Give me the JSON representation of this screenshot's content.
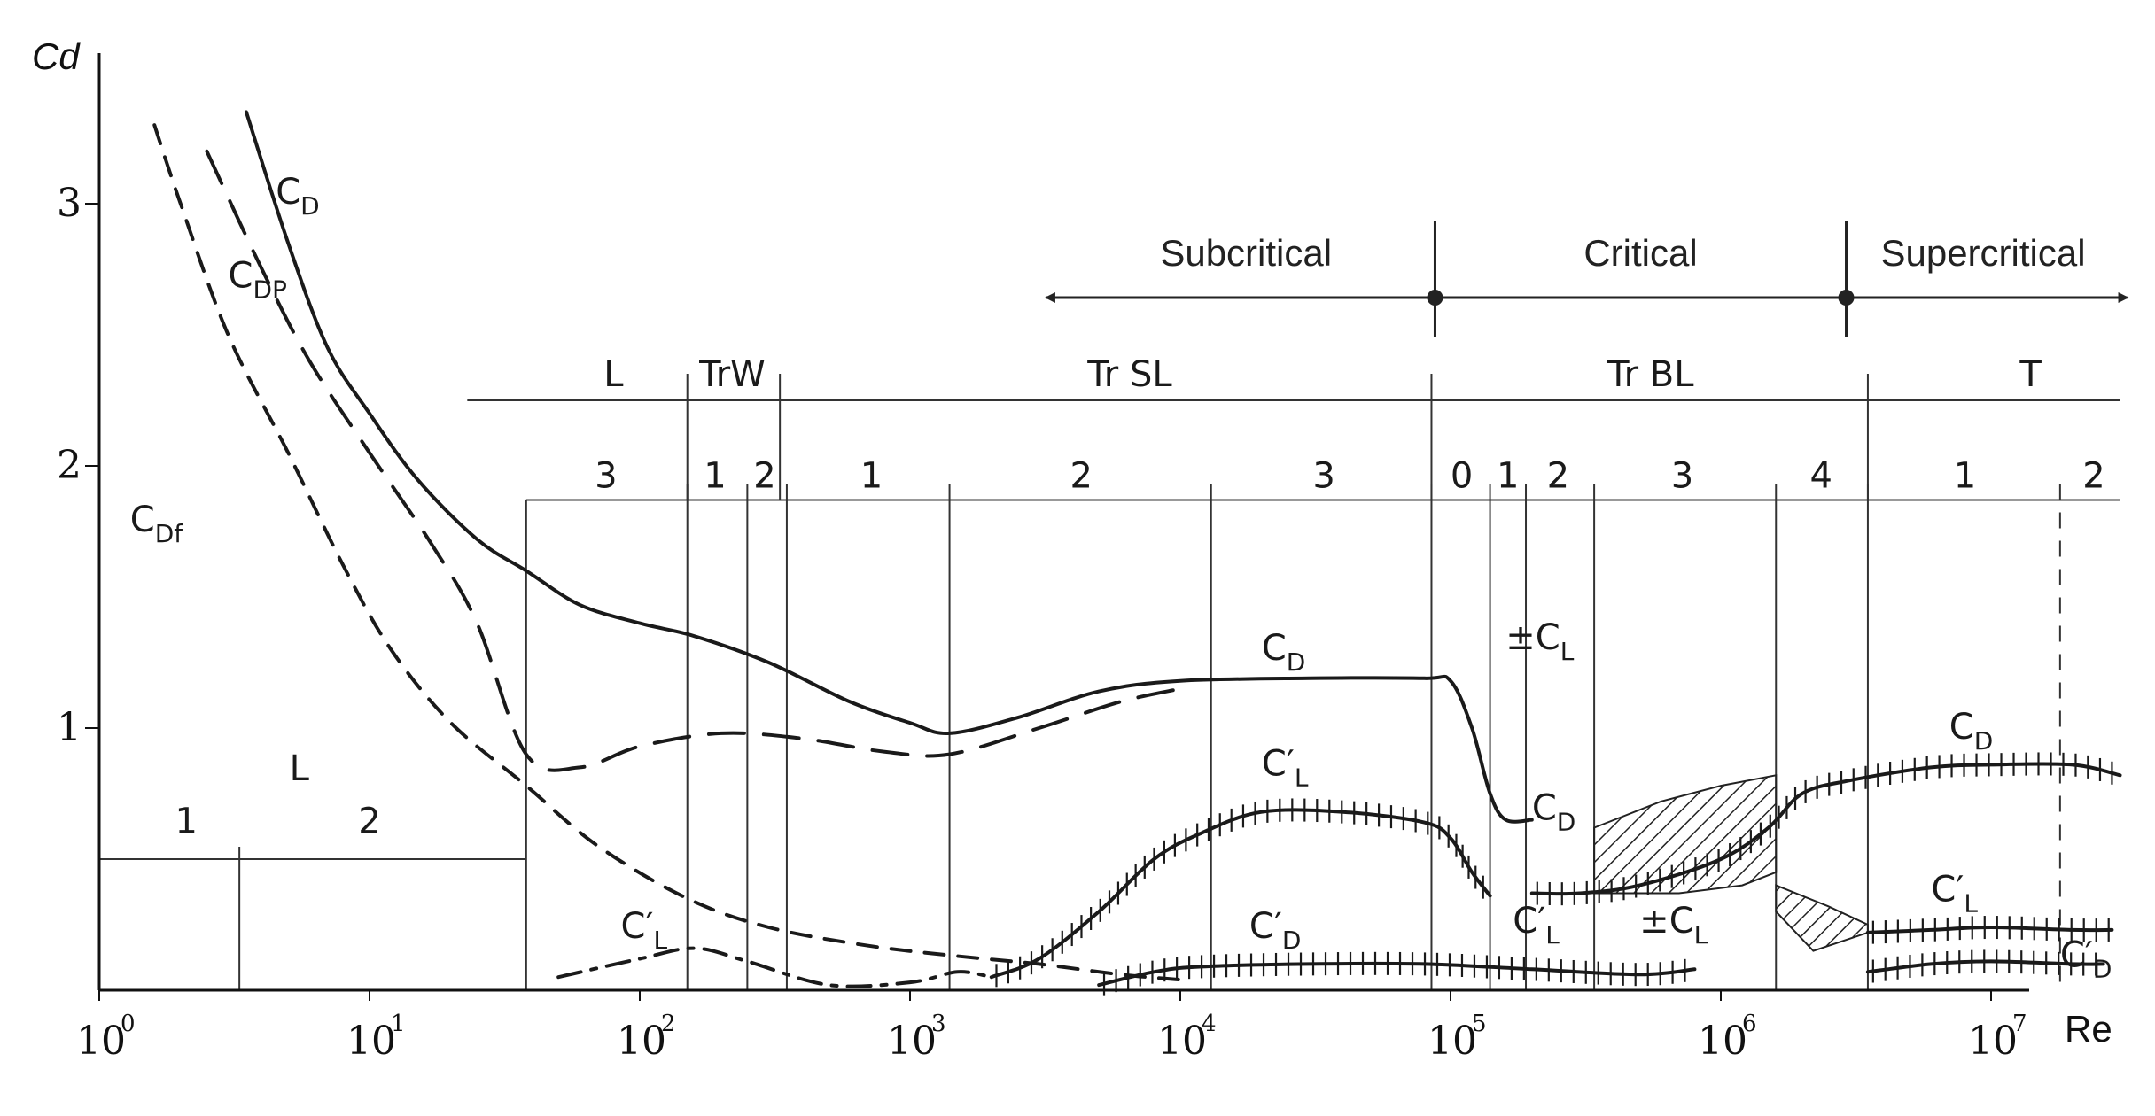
{
  "chart_data": {
    "type": "line",
    "x_scale": "log",
    "xlabel": "Re",
    "ylabel": "Cd",
    "xlim": [
      1,
      30000000
    ],
    "ylim": [
      0,
      3.5
    ],
    "x_ticks": [
      {
        "value": 1,
        "base": "10",
        "exp": "0"
      },
      {
        "value": 10,
        "base": "10",
        "exp": "1"
      },
      {
        "value": 100,
        "base": "10",
        "exp": "2"
      },
      {
        "value": 1000,
        "base": "10",
        "exp": "3"
      },
      {
        "value": 10000,
        "base": "10",
        "exp": "4"
      },
      {
        "value": 100000,
        "base": "10",
        "exp": "5"
      },
      {
        "value": 1000000,
        "base": "10",
        "exp": "6"
      },
      {
        "value": 10000000,
        "base": "10",
        "exp": "7"
      }
    ],
    "y_ticks": [
      {
        "value": 1,
        "label": "1"
      },
      {
        "value": 2,
        "label": "2"
      },
      {
        "value": 3,
        "label": "3"
      }
    ],
    "series": [
      {
        "name": "CD",
        "style": "solid",
        "points": [
          [
            3.5,
            3.35
          ],
          [
            5,
            2.85
          ],
          [
            7,
            2.45
          ],
          [
            10,
            2.2
          ],
          [
            15,
            1.95
          ],
          [
            25,
            1.72
          ],
          [
            38,
            1.6
          ],
          [
            60,
            1.47
          ],
          [
            100,
            1.4
          ],
          [
            160,
            1.35
          ],
          [
            300,
            1.25
          ],
          [
            600,
            1.1
          ],
          [
            1000,
            1.02
          ],
          [
            1400,
            0.98
          ],
          [
            2500,
            1.04
          ],
          [
            5000,
            1.14
          ],
          [
            10000,
            1.18
          ],
          [
            30000,
            1.19
          ],
          [
            80000,
            1.19
          ],
          [
            100000,
            1.18
          ],
          [
            120000,
            1.0
          ],
          [
            140000,
            0.75
          ],
          [
            160000,
            0.65
          ],
          [
            200000,
            0.65
          ]
        ]
      },
      {
        "name": "CDp",
        "style": "long-dash",
        "points": [
          [
            2.5,
            3.2
          ],
          [
            4,
            2.75
          ],
          [
            6,
            2.4
          ],
          [
            10,
            2.05
          ],
          [
            17,
            1.7
          ],
          [
            25,
            1.4
          ],
          [
            38,
            0.9
          ],
          [
            60,
            0.85
          ],
          [
            100,
            0.93
          ],
          [
            200,
            0.98
          ],
          [
            400,
            0.96
          ],
          [
            800,
            0.91
          ],
          [
            1400,
            0.9
          ],
          [
            3000,
            1.0
          ],
          [
            6000,
            1.1
          ],
          [
            10000,
            1.15
          ]
        ]
      },
      {
        "name": "CDf",
        "style": "short-dash",
        "points": [
          [
            1.6,
            3.3
          ],
          [
            2,
            3.0
          ],
          [
            3,
            2.5
          ],
          [
            5,
            2.05
          ],
          [
            8,
            1.62
          ],
          [
            12,
            1.3
          ],
          [
            20,
            1.02
          ],
          [
            38,
            0.78
          ],
          [
            70,
            0.55
          ],
          [
            150,
            0.35
          ],
          [
            300,
            0.24
          ],
          [
            700,
            0.17
          ],
          [
            1500,
            0.13
          ],
          [
            3000,
            0.1
          ],
          [
            6000,
            0.06
          ],
          [
            10000,
            0.04
          ]
        ]
      },
      {
        "name": "C'L",
        "style": "solid-hatched",
        "points": [
          [
            2000,
            0.05
          ],
          [
            3000,
            0.12
          ],
          [
            5000,
            0.3
          ],
          [
            8000,
            0.5
          ],
          [
            12000,
            0.6
          ],
          [
            20000,
            0.68
          ],
          [
            40000,
            0.68
          ],
          [
            80000,
            0.64
          ],
          [
            100000,
            0.58
          ],
          [
            120000,
            0.45
          ],
          [
            140000,
            0.36
          ]
        ]
      },
      {
        "name": "C'L",
        "style": "dash-dot",
        "points": [
          [
            50,
            0.05
          ],
          [
            100,
            0.12
          ],
          [
            160,
            0.16
          ],
          [
            250,
            0.11
          ],
          [
            500,
            0.02
          ],
          [
            1000,
            0.03
          ],
          [
            1500,
            0.07
          ],
          [
            2000,
            0.05
          ]
        ]
      },
      {
        "name": "C'D",
        "style": "solid-hatched",
        "points": [
          [
            5000,
            0.02
          ],
          [
            8000,
            0.07
          ],
          [
            12000,
            0.09
          ],
          [
            30000,
            0.1
          ],
          [
            80000,
            0.1
          ],
          [
            200000,
            0.08
          ],
          [
            500000,
            0.06
          ],
          [
            800000,
            0.08
          ]
        ]
      },
      {
        "name": "CD",
        "style": "solid-hatched",
        "points": [
          [
            200000,
            0.37
          ],
          [
            300000,
            0.37
          ],
          [
            500000,
            0.4
          ],
          [
            1000000,
            0.5
          ],
          [
            1500000,
            0.62
          ],
          [
            2000000,
            0.75
          ],
          [
            3000000,
            0.8
          ],
          [
            6000000,
            0.85
          ],
          [
            10000000,
            0.86
          ],
          [
            20000000,
            0.86
          ],
          [
            30000000,
            0.82
          ]
        ]
      },
      {
        "name": "C'L",
        "style": "solid-hatched",
        "points": [
          [
            3500000,
            0.22
          ],
          [
            6000000,
            0.23
          ],
          [
            10000000,
            0.24
          ],
          [
            20000000,
            0.23
          ],
          [
            28000000,
            0.23
          ]
        ]
      },
      {
        "name": "C'D",
        "style": "solid-hatched",
        "points": [
          [
            3500000,
            0.07
          ],
          [
            6000000,
            0.1
          ],
          [
            10000000,
            0.11
          ],
          [
            20000000,
            0.1
          ],
          [
            26000000,
            0.1
          ]
        ]
      }
    ],
    "series_labels": [
      {
        "text": "CD",
        "main": "C",
        "sub": "D",
        "x": 4.5,
        "y": 3.0
      },
      {
        "text": "CDP",
        "main": "C",
        "sub": "DP",
        "x": 3.0,
        "y": 2.68
      },
      {
        "text": "CDf",
        "main": "C",
        "sub": "Df",
        "x": 1.3,
        "y": 1.75
      },
      {
        "text": "CD",
        "main": "C",
        "sub": "D",
        "x": 20000,
        "y": 1.26
      },
      {
        "text": "±CL",
        "main": "±C",
        "sub": "L",
        "x": 160000,
        "y": 1.3
      },
      {
        "text": "C'L",
        "main": "C′",
        "sub": "L",
        "x": 20000,
        "y": 0.82
      },
      {
        "text": "CD",
        "main": "C",
        "sub": "D",
        "x": 200000,
        "y": 0.65
      },
      {
        "text": "C'L",
        "main": "C′",
        "sub": "L",
        "x": 85,
        "y": 0.2
      },
      {
        "text": "C'D",
        "main": "C′",
        "sub": "D",
        "x": 18000,
        "y": 0.2
      },
      {
        "text": "C'L",
        "main": "C′",
        "sub": "L",
        "x": 170000,
        "y": 0.22
      },
      {
        "text": "±CL",
        "main": "±C",
        "sub": "L",
        "x": 500000,
        "y": 0.22
      },
      {
        "text": "CD",
        "main": "C",
        "sub": "D",
        "x": 7000000,
        "y": 0.96
      },
      {
        "text": "C'L",
        "main": "C′",
        "sub": "L",
        "x": 6000000,
        "y": 0.34
      },
      {
        "text": "C'D",
        "main": "C′",
        "sub": "D",
        "x": 18000000,
        "y": 0.09
      }
    ],
    "regimes": {
      "labels": [
        "Subcritical",
        "Critical",
        "Supercritical"
      ],
      "boundaries": [
        85000,
        3000000
      ],
      "left_arrow_to": 3500,
      "right_arrow_to": 30000000
    },
    "flow_regions": {
      "top_row": {
        "y": 2.25,
        "start": 23,
        "end": 30000000,
        "dividers": [
          150,
          330,
          85000,
          3500000
        ],
        "labels": [
          {
            "text": "L",
            "x": 80
          },
          {
            "text": "TrW",
            "x": 220
          },
          {
            "text": "Tr SL",
            "x": 6500
          },
          {
            "text": "Tr BL",
            "x": 550000
          },
          {
            "text": "T",
            "x": 14000000
          }
        ]
      },
      "mid_row": {
        "y": 1.87,
        "start": 38,
        "end": 30000000,
        "dividers": [
          {
            "x": 150,
            "dashed": false
          },
          {
            "x": 250,
            "dashed": false
          },
          {
            "x": 350,
            "dashed": false
          },
          {
            "x": 1400,
            "dashed": false
          },
          {
            "x": 13000,
            "dashed": false
          },
          {
            "x": 85000,
            "dashed": false
          },
          {
            "x": 140000,
            "dashed": false
          },
          {
            "x": 190000,
            "dashed": false
          },
          {
            "x": 340000,
            "dashed": false
          },
          {
            "x": 1600000,
            "dashed": false
          },
          {
            "x": 3500000,
            "dashed": false
          },
          {
            "x": 18000000,
            "dashed": true
          }
        ],
        "labels": [
          {
            "text": "3",
            "x": 75
          },
          {
            "text": "1",
            "x": 190
          },
          {
            "text": "2",
            "x": 290
          },
          {
            "text": "1",
            "x": 720
          },
          {
            "text": "2",
            "x": 4300
          },
          {
            "text": "3",
            "x": 34000
          },
          {
            "text": "0",
            "x": 110000
          },
          {
            "text": "1",
            "x": 163000
          },
          {
            "text": "2",
            "x": 250000
          },
          {
            "text": "3",
            "x": 720000
          },
          {
            "text": "4",
            "x": 2350000
          },
          {
            "text": "1",
            "x": 8000000
          },
          {
            "text": "2",
            "x": 24000000
          }
        ]
      },
      "low_row": {
        "y": 0.5,
        "end": 38,
        "dividers": [
          3.3
        ],
        "labels": [
          {
            "text": "L",
            "x": 5.5,
            "y": 0.8
          },
          {
            "text": "1",
            "x": 2.1,
            "y": 0.6
          },
          {
            "text": "2",
            "x": 10,
            "y": 0.6
          }
        ]
      }
    }
  }
}
